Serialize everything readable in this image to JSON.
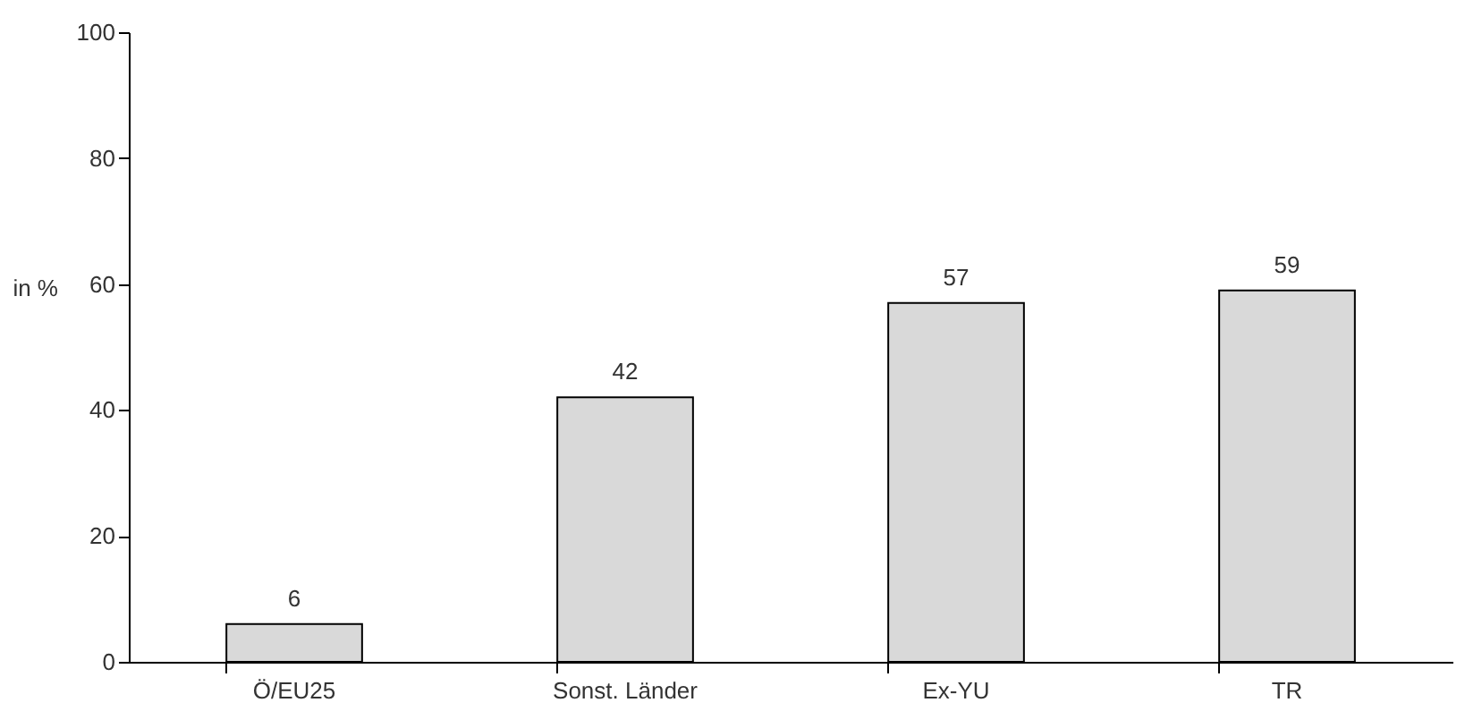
{
  "chart_data": {
    "type": "bar",
    "ylabel": "in %",
    "categories": [
      "Ö/EU25",
      "Sonst. Länder",
      "Ex-YU",
      "TR"
    ],
    "values": [
      6,
      42,
      57,
      59
    ],
    "color": "#d9d9d9",
    "ylim": [
      0,
      100
    ],
    "yticks": [
      0,
      20,
      40,
      60,
      80,
      100
    ],
    "grid": false,
    "data_labels": true
  }
}
